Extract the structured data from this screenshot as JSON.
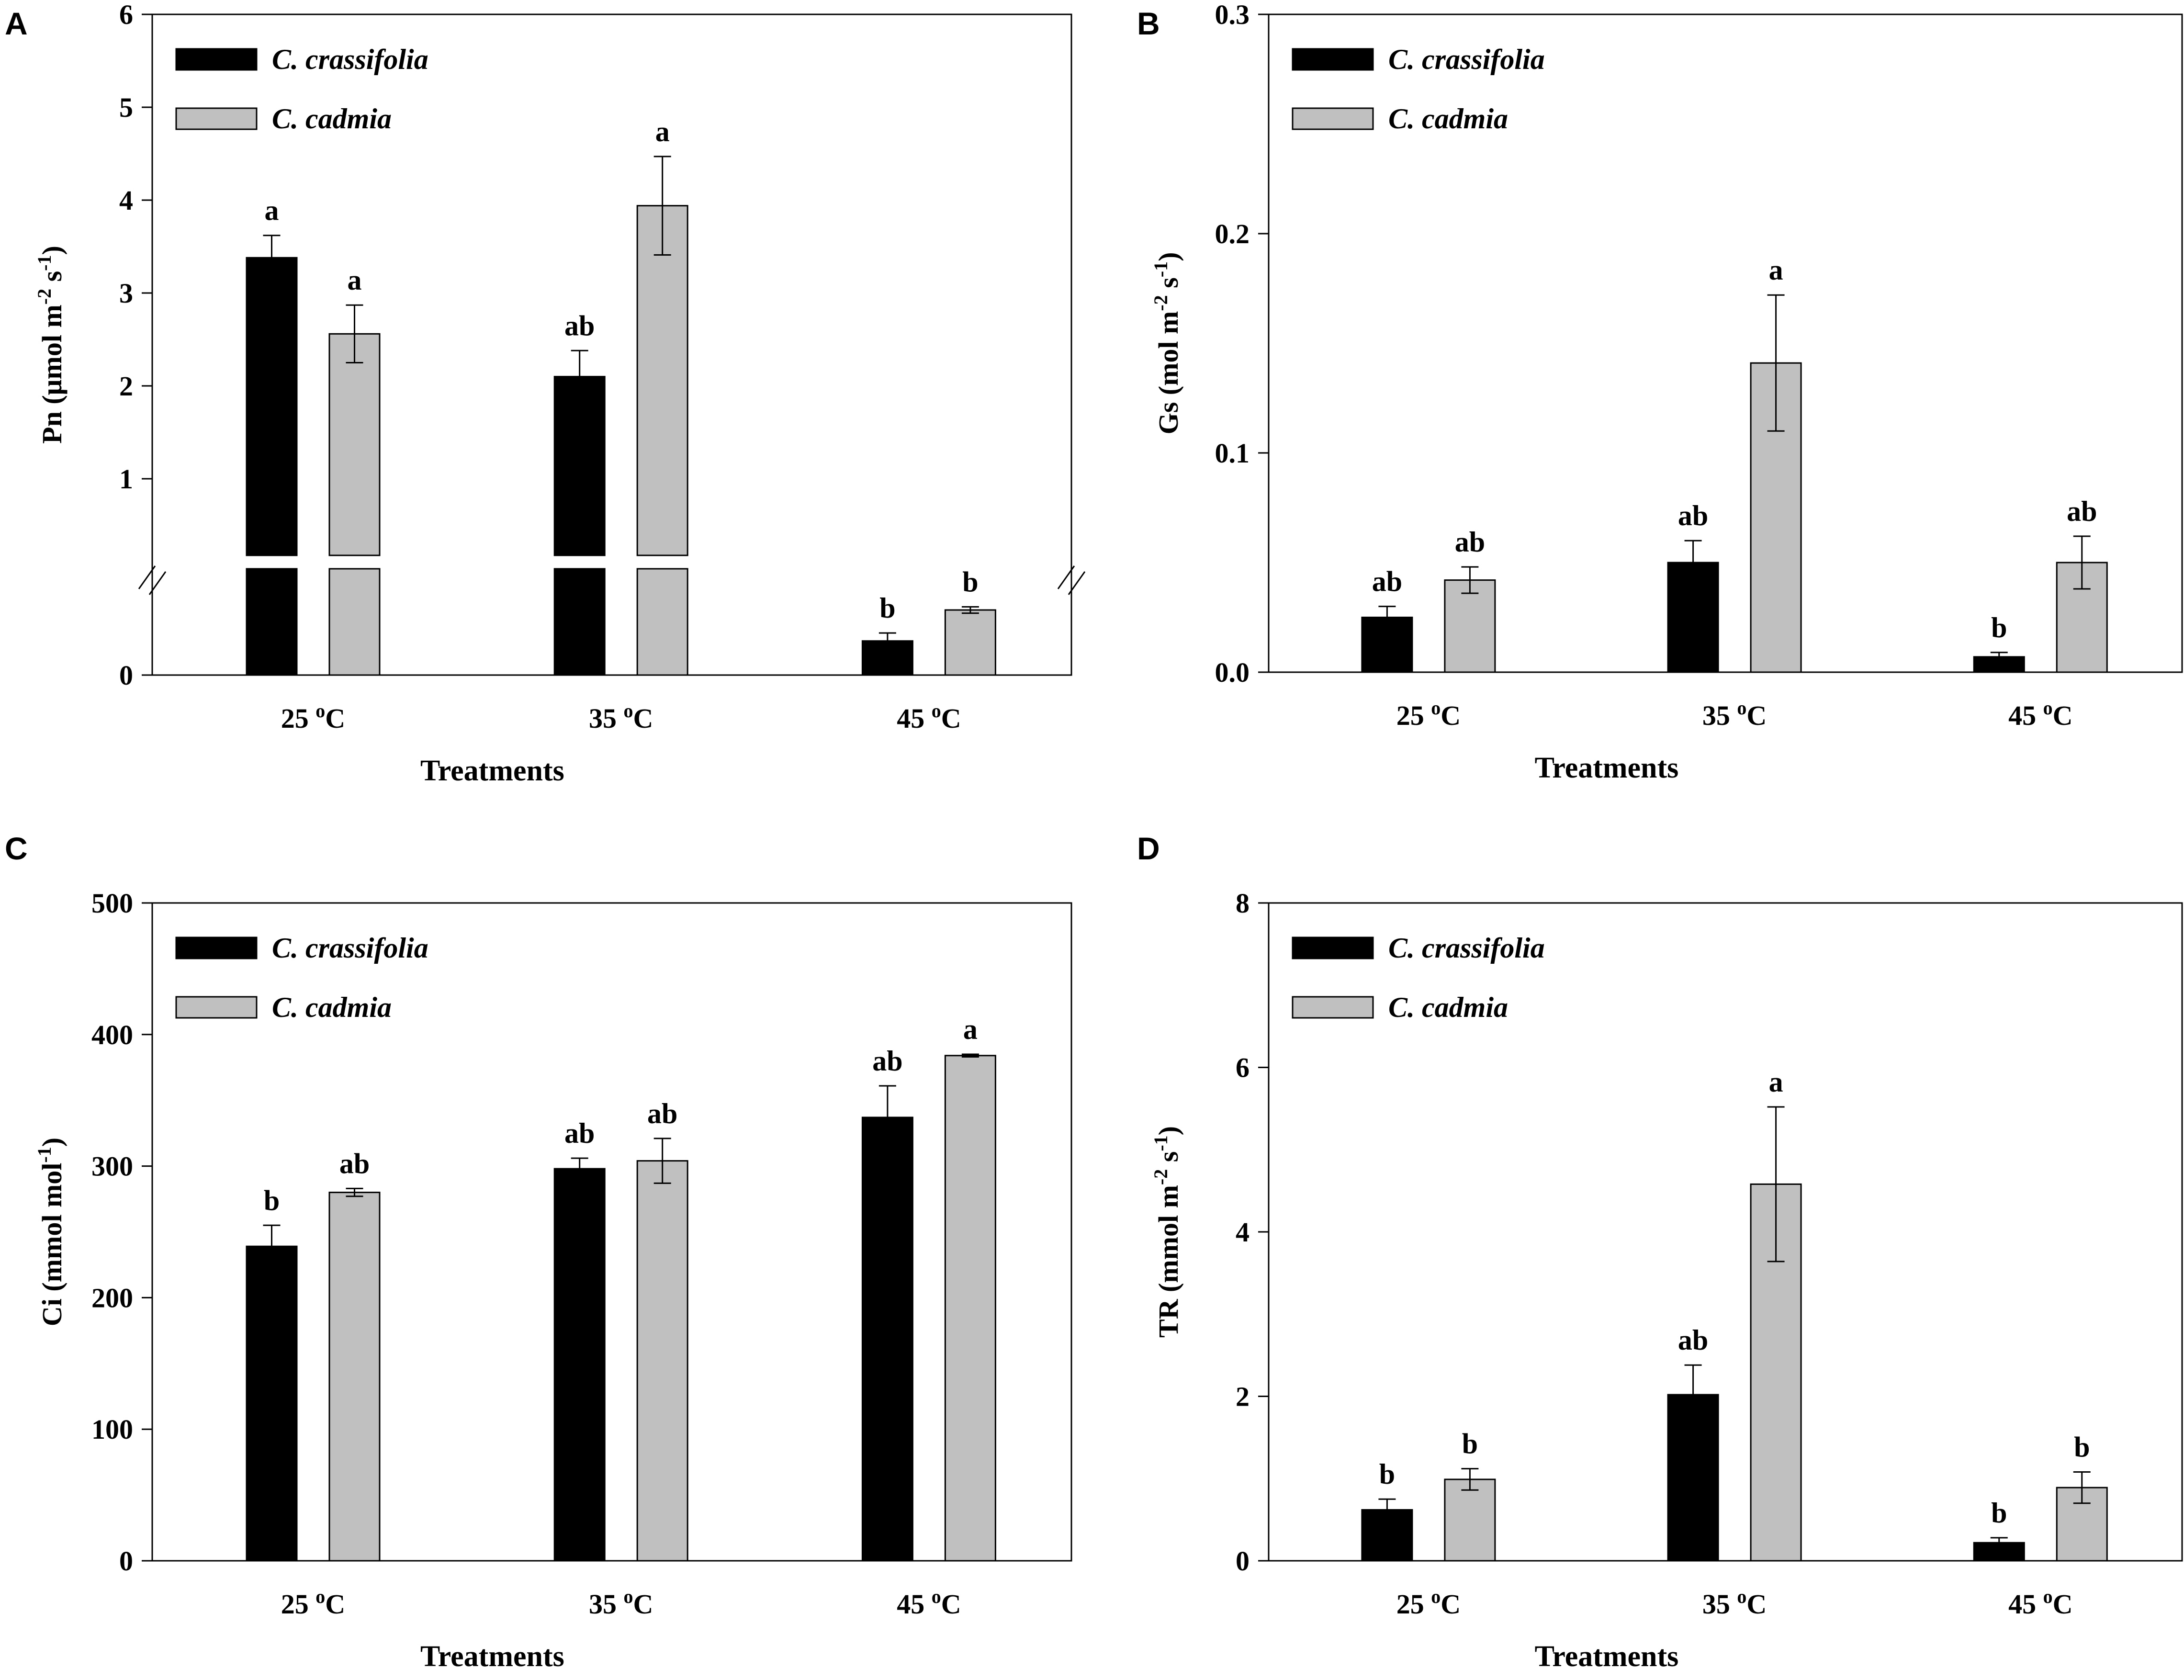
{
  "colors": {
    "C_crassifolia": "#000000",
    "C_cadmia": "#c0c0c0"
  },
  "chart_data": [
    {
      "panel": "A",
      "type": "bar",
      "categories": [
        "25 °C",
        "35 °C",
        "45 °C"
      ],
      "category_labels": [
        [
          "25 ",
          "o",
          "C"
        ],
        [
          "35 ",
          "o",
          "C"
        ],
        [
          "45 ",
          "o",
          "C"
        ]
      ],
      "xlabel": "Treatments",
      "ylabel": {
        "prefix": "Pn (μmol m",
        "sup1": "-2",
        "mid": " s",
        "sup2": "-1",
        "suffix": ")"
      },
      "ylim": [
        0,
        6
      ],
      "y_ticks": [
        0,
        1,
        2,
        3,
        4,
        5,
        6
      ],
      "y_break": true,
      "legend": [
        "C. crassifolia",
        "C. cadmia"
      ],
      "series": [
        {
          "name": "C. crassifolia",
          "values": [
            3.38,
            2.1,
            0.43
          ],
          "errors": [
            0.24,
            0.28,
            0.1
          ],
          "letters": [
            "a",
            "ab",
            "b"
          ]
        },
        {
          "name": "C. cadmia",
          "values": [
            2.56,
            3.94,
            0.82
          ],
          "errors": [
            0.31,
            0.53,
            0.04
          ],
          "letters": [
            "a",
            "a",
            "b"
          ]
        }
      ]
    },
    {
      "panel": "B",
      "type": "bar",
      "categories": [
        "25 °C",
        "35 °C",
        "45 °C"
      ],
      "category_labels": [
        [
          "25 ",
          "o",
          "C"
        ],
        [
          "35 ",
          "o",
          "C"
        ],
        [
          "45 ",
          "o",
          "C"
        ]
      ],
      "xlabel": "Treatments",
      "ylabel": {
        "prefix": "Gs (mol m",
        "sup1": "-2",
        "mid": " s",
        "sup2": "-1",
        "suffix": ")"
      },
      "ylim": [
        0,
        0.3
      ],
      "y_ticks": [
        0.0,
        0.1,
        0.2,
        0.3
      ],
      "y_tick_labels": [
        "0.0",
        "0.1",
        "0.2",
        "0.3"
      ],
      "legend": [
        "C. crassifolia",
        "C. cadmia"
      ],
      "series": [
        {
          "name": "C. crassifolia",
          "values": [
            0.025,
            0.05,
            0.007
          ],
          "errors": [
            0.005,
            0.01,
            0.002
          ],
          "letters": [
            "ab",
            "ab",
            "b"
          ]
        },
        {
          "name": "C. cadmia",
          "values": [
            0.042,
            0.141,
            0.05
          ],
          "errors": [
            0.006,
            0.031,
            0.012
          ],
          "letters": [
            "ab",
            "a",
            "ab"
          ]
        }
      ]
    },
    {
      "panel": "C",
      "type": "bar",
      "categories": [
        "25 °C",
        "35 °C",
        "45 °C"
      ],
      "category_labels": [
        [
          "25 ",
          "o",
          "C"
        ],
        [
          "35 ",
          "o",
          "C"
        ],
        [
          "45 ",
          "o",
          "C"
        ]
      ],
      "xlabel": "Treatments",
      "ylabel": {
        "prefix": "Ci (mmol mol",
        "sup1": "-1",
        "mid": "",
        "sup2": "",
        "suffix": ")"
      },
      "ylim": [
        0,
        500
      ],
      "y_ticks": [
        0,
        100,
        200,
        300,
        400,
        500
      ],
      "legend": [
        "C. crassifolia",
        "C. cadmia"
      ],
      "series": [
        {
          "name": "C. crassifolia",
          "values": [
            239,
            298,
            337
          ],
          "errors": [
            16,
            8,
            24
          ],
          "letters": [
            "b",
            "ab",
            "ab"
          ]
        },
        {
          "name": "C. cadmia",
          "values": [
            280,
            304,
            384
          ],
          "errors": [
            3,
            17,
            1
          ],
          "letters": [
            "ab",
            "ab",
            "a"
          ]
        }
      ]
    },
    {
      "panel": "D",
      "type": "bar",
      "categories": [
        "25 °C",
        "35 °C",
        "45 °C"
      ],
      "category_labels": [
        [
          "25 ",
          "o",
          "C"
        ],
        [
          "35 ",
          "o",
          "C"
        ],
        [
          "45 ",
          "o",
          "C"
        ]
      ],
      "xlabel": "Treatments",
      "ylabel": {
        "prefix": "TR (mmol m",
        "sup1": "-2",
        "mid": " s",
        "sup2": "-1",
        "suffix": ")"
      },
      "ylim": [
        0,
        8
      ],
      "y_ticks": [
        0,
        2,
        4,
        6,
        8
      ],
      "legend": [
        "C. crassifolia",
        "C. cadmia"
      ],
      "series": [
        {
          "name": "C. crassifolia",
          "values": [
            0.62,
            2.02,
            0.22
          ],
          "errors": [
            0.13,
            0.36,
            0.06
          ],
          "letters": [
            "b",
            "ab",
            "b"
          ]
        },
        {
          "name": "C. cadmia",
          "values": [
            0.99,
            4.58,
            0.89
          ],
          "errors": [
            0.13,
            0.94,
            0.19
          ],
          "letters": [
            "b",
            "a",
            "b"
          ]
        }
      ]
    }
  ]
}
